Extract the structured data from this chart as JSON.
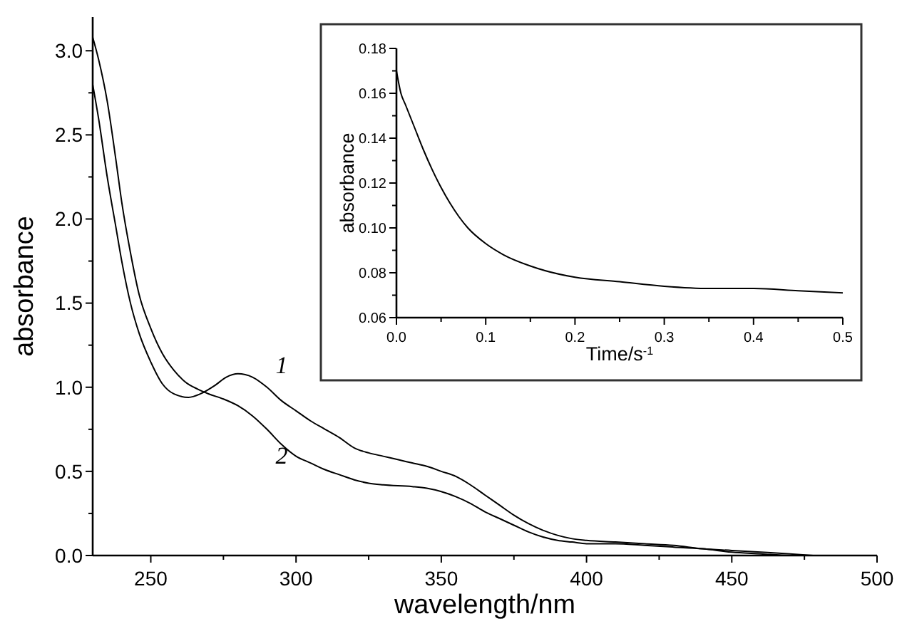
{
  "chart_data": [
    {
      "type": "line",
      "xlabel": "wavelength/nm",
      "ylabel": "absorbance",
      "xlim": [
        230,
        500
      ],
      "ylim": [
        0,
        3.2
      ],
      "xticks": [
        250,
        {
          "value": 275,
          "label": null
        },
        300,
        {
          "value": 325,
          "label": null
        },
        350,
        {
          "value": 375,
          "label": null
        },
        400,
        {
          "value": 425,
          "label": null
        },
        450,
        {
          "value": 475,
          "label": null
        },
        500
      ],
      "yticks": [
        {
          "value": 0,
          "label": "0.0"
        },
        {
          "value": 0.25,
          "label": null
        },
        {
          "value": 0.5,
          "label": "0.5"
        },
        {
          "value": 0.75,
          "label": null
        },
        {
          "value": 1,
          "label": "1.0"
        },
        {
          "value": 1.25,
          "label": null
        },
        {
          "value": 1.5,
          "label": "1.5"
        },
        {
          "value": 1.75,
          "label": null
        },
        {
          "value": 2,
          "label": "2.0"
        },
        {
          "value": 2.25,
          "label": null
        },
        {
          "value": 2.5,
          "label": "2.5"
        },
        {
          "value": 2.75,
          "label": null
        },
        {
          "value": 3,
          "label": "3.0"
        }
      ],
      "grid": false,
      "line_style": "solid",
      "series": [
        {
          "name": "1",
          "color": "#000000",
          "x": [
            230,
            232,
            235,
            238,
            240,
            243,
            246,
            250,
            254,
            258,
            263,
            267,
            272,
            276,
            280,
            285,
            290,
            295,
            300,
            305,
            310,
            315,
            320,
            325,
            330,
            335,
            340,
            345,
            350,
            355,
            360,
            365,
            370,
            375,
            380,
            385,
            390,
            395,
            400,
            410,
            420,
            430,
            440,
            450,
            460,
            470,
            478
          ],
          "values": [
            2.8,
            2.6,
            2.25,
            1.95,
            1.75,
            1.5,
            1.32,
            1.15,
            1.02,
            0.96,
            0.94,
            0.96,
            1.01,
            1.06,
            1.08,
            1.06,
            1.0,
            0.92,
            0.86,
            0.8,
            0.75,
            0.7,
            0.64,
            0.61,
            0.59,
            0.57,
            0.55,
            0.53,
            0.5,
            0.47,
            0.42,
            0.36,
            0.3,
            0.24,
            0.19,
            0.15,
            0.12,
            0.1,
            0.09,
            0.08,
            0.07,
            0.06,
            0.04,
            0.03,
            0.02,
            0.01,
            0
          ]
        },
        {
          "name": "2",
          "color": "#000000",
          "x": [
            230,
            232,
            235,
            238,
            240,
            243,
            246,
            250,
            254,
            258,
            262,
            266,
            270,
            275,
            280,
            285,
            290,
            295,
            300,
            305,
            310,
            315,
            320,
            325,
            330,
            340,
            345,
            350,
            355,
            360,
            365,
            370,
            375,
            380,
            385,
            390,
            395,
            400,
            410,
            420,
            430,
            440,
            450,
            460,
            470,
            478
          ],
          "values": [
            3.08,
            2.95,
            2.7,
            2.35,
            2.1,
            1.8,
            1.55,
            1.35,
            1.2,
            1.1,
            1.03,
            0.99,
            0.96,
            0.93,
            0.89,
            0.83,
            0.75,
            0.66,
            0.59,
            0.55,
            0.51,
            0.48,
            0.45,
            0.43,
            0.42,
            0.41,
            0.4,
            0.38,
            0.35,
            0.31,
            0.26,
            0.22,
            0.18,
            0.14,
            0.11,
            0.09,
            0.08,
            0.07,
            0.07,
            0.06,
            0.05,
            0.04,
            0.02,
            0.01,
            0,
            0
          ]
        }
      ]
    },
    {
      "type": "line",
      "xlabel": "Time/s$^{-1}$",
      "ylabel": "absorbance",
      "xlim": [
        0,
        0.5
      ],
      "ylim": [
        0.06,
        0.18
      ],
      "xticks": [
        {
          "value": 0,
          "label": "0.0"
        },
        {
          "value": 0.05,
          "label": null
        },
        0.1,
        {
          "value": 0.15,
          "label": null
        },
        0.2,
        {
          "value": 0.25,
          "label": null
        },
        0.3,
        {
          "value": 0.35,
          "label": null
        },
        0.4,
        {
          "value": 0.45,
          "label": null
        },
        0.5
      ],
      "yticks": [
        0.06,
        {
          "value": 0.07,
          "label": null
        },
        0.08,
        {
          "value": 0.09,
          "label": null
        },
        {
          "value": 0.1,
          "label": "0.10"
        },
        {
          "value": 0.11,
          "label": null
        },
        0.12,
        {
          "value": 0.13,
          "label": null
        },
        0.14,
        {
          "value": 0.15,
          "label": null
        },
        0.16,
        {
          "value": 0.17,
          "label": null
        },
        0.18
      ],
      "grid": false,
      "line_style": "solid",
      "series": [
        {
          "color": "#000000",
          "x": [
            0,
            0.005,
            0.01,
            0.02,
            0.03,
            0.04,
            0.05,
            0.06,
            0.07,
            0.08,
            0.1,
            0.12,
            0.15,
            0.2,
            0.25,
            0.3,
            0.35,
            0.4,
            0.45,
            0.5
          ],
          "values": [
            0.17,
            0.16,
            0.155,
            0.145,
            0.135,
            0.126,
            0.118,
            0.111,
            0.105,
            0.1,
            0.093,
            0.088,
            0.083,
            0.078,
            0.076,
            0.074,
            0.073,
            0.073,
            0.072,
            0.071
          ]
        }
      ]
    }
  ]
}
